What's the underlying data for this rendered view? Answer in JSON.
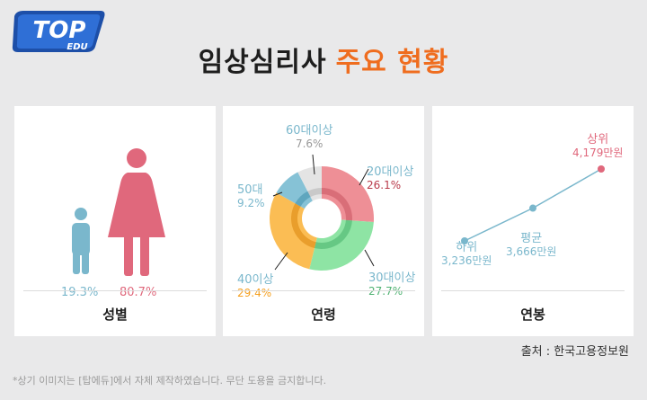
{
  "logo": {
    "top": "TOP",
    "bottom": "EDU"
  },
  "title": {
    "main": "임상심리사",
    "accent": "주요 현황"
  },
  "colors": {
    "blue": "#7ab7cc",
    "pink": "#e0687c",
    "orange": "#f59f1e",
    "green": "#4fb272",
    "gray": "#999999",
    "dark_red": "#b83a4a",
    "line_blue": "#7ab7cc"
  },
  "chart_data": [
    {
      "type": "pictogram",
      "title": "성별",
      "categories": [
        "child-figure",
        "adult-figure"
      ],
      "values": [
        19.3,
        80.7
      ],
      "value_labels": [
        "19.3%",
        "80.7%"
      ]
    },
    {
      "type": "pie",
      "title": "연령",
      "series": [
        {
          "name": "20대이상",
          "value": 26.1,
          "label": "26.1%",
          "color": "#ee8f96"
        },
        {
          "name": "30대이상",
          "value": 27.7,
          "label": "27.7%",
          "color": "#8ee4a4"
        },
        {
          "name": "40이상",
          "value": 29.4,
          "label": "29.4%",
          "color": "#fbbd54"
        },
        {
          "name": "50대",
          "value": 9.2,
          "label": "9.2%",
          "color": "#86c2d6"
        },
        {
          "name": "60대이상",
          "value": 7.6,
          "label": "7.6%",
          "color": "#e4e4e4"
        }
      ]
    },
    {
      "type": "line",
      "title": "연봉",
      "categories": [
        "하위",
        "평균",
        "상위"
      ],
      "values": [
        3236,
        3666,
        4179
      ],
      "value_labels": [
        "3,236만원",
        "3,666만원",
        "4,179만원"
      ],
      "ylim": [
        3100,
        4300
      ]
    }
  ],
  "footer": {
    "source": "출처 : 한국고용정보원",
    "disclaimer": "*상기 이미지는 [탑에듀]에서 자체 제작하였습니다. 무단 도용을 금지합니다."
  }
}
